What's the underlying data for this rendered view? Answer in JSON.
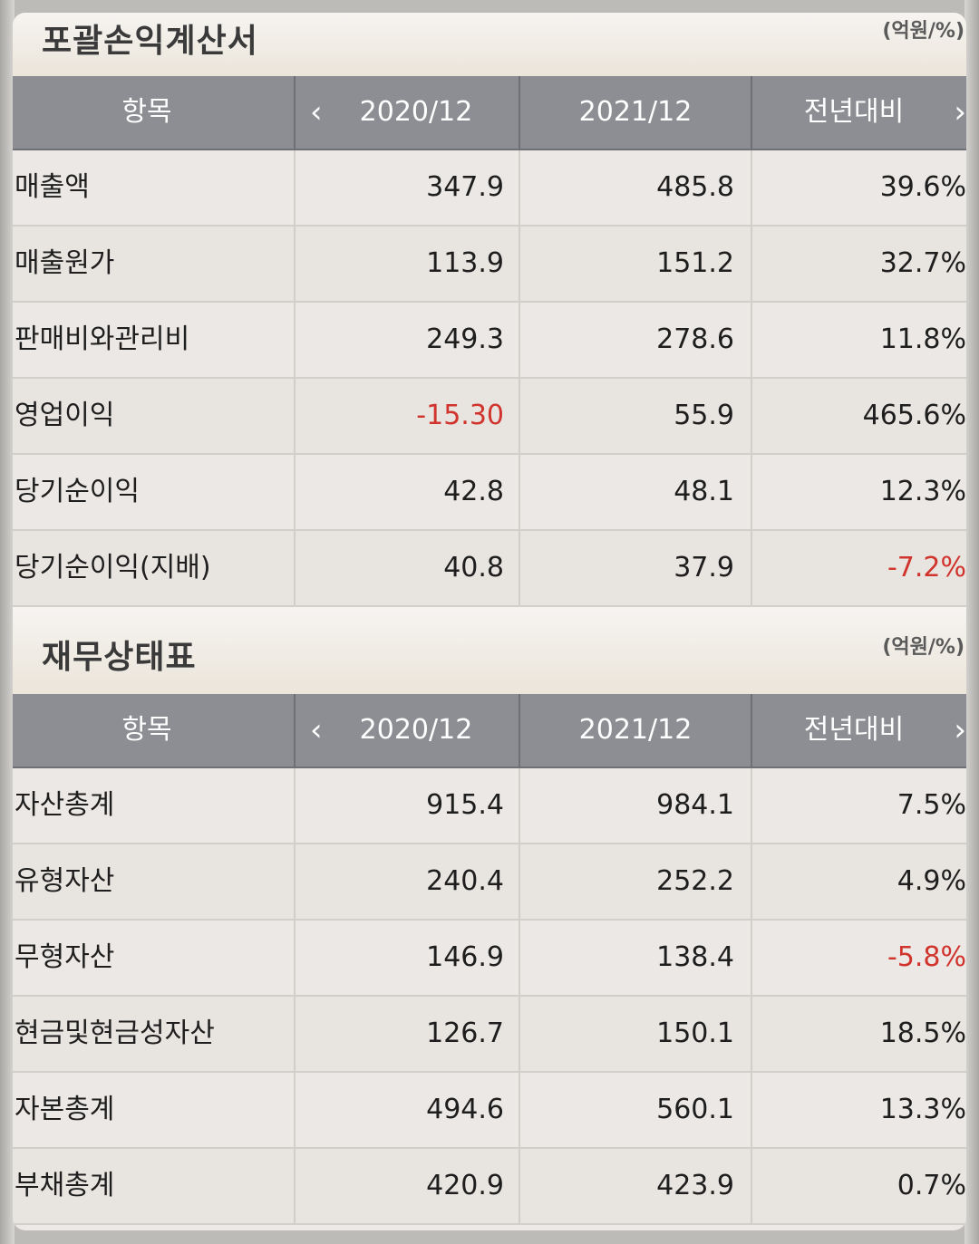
{
  "income": {
    "title": "포괄손익계산서",
    "unit": "(억원/%)",
    "headers": {
      "item": "항목",
      "col1": "2020/12",
      "col2": "2021/12",
      "col3": "전년대비"
    },
    "rows": [
      {
        "label": "매출액",
        "v1": "347.9",
        "v2": "485.8",
        "v3": "39.6%"
      },
      {
        "label": "매출원가",
        "v1": "113.9",
        "v2": "151.2",
        "v3": "32.7%"
      },
      {
        "label": "판매비와관리비",
        "v1": "249.3",
        "v2": "278.6",
        "v3": "11.8%"
      },
      {
        "label": "영업이익",
        "v1": "-15.30",
        "v2": "55.9",
        "v3": "465.6%"
      },
      {
        "label": "당기순이익",
        "v1": "42.8",
        "v2": "48.1",
        "v3": "12.3%"
      },
      {
        "label": "당기순이익(지배)",
        "v1": "40.8",
        "v2": "37.9",
        "v3": "-7.2%"
      }
    ]
  },
  "balance": {
    "title": "재무상태표",
    "unit": "(억원/%)",
    "headers": {
      "item": "항목",
      "col1": "2020/12",
      "col2": "2021/12",
      "col3": "전년대비"
    },
    "rows": [
      {
        "label": "자산총계",
        "v1": "915.4",
        "v2": "984.1",
        "v3": "7.5%"
      },
      {
        "label": "유형자산",
        "v1": "240.4",
        "v2": "252.2",
        "v3": "4.9%"
      },
      {
        "label": "무형자산",
        "v1": "146.9",
        "v2": "138.4",
        "v3": "-5.8%"
      },
      {
        "label": "현금및현금성자산",
        "v1": "126.7",
        "v2": "150.1",
        "v3": "18.5%"
      },
      {
        "label": "자본총계",
        "v1": "494.6",
        "v2": "560.1",
        "v3": "13.3%"
      },
      {
        "label": "부채총계",
        "v1": "420.9",
        "v2": "423.9",
        "v3": "0.7%"
      }
    ]
  },
  "icons": {
    "prev": "chevron-left-icon",
    "next": "chevron-right-icon"
  },
  "colors": {
    "negative": "#d0342c",
    "header_bg": "#8c8e93"
  }
}
